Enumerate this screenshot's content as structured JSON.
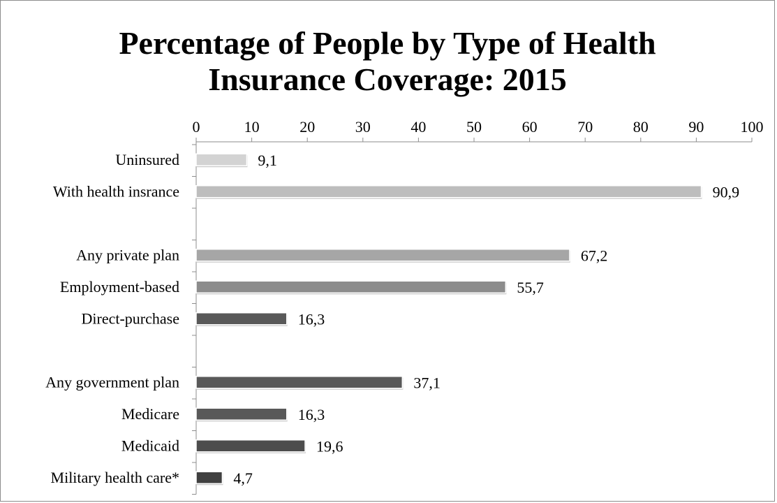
{
  "chart_data": {
    "type": "bar",
    "orientation": "horizontal",
    "title_lines": [
      "Percentage of People by Type of Health",
      "Insurance Coverage: 2015"
    ],
    "xlim": [
      0,
      100
    ],
    "x_ticks": [
      "0",
      "10",
      "20",
      "30",
      "40",
      "50",
      "60",
      "70",
      "80",
      "90",
      "100"
    ],
    "x_axis_position": "top",
    "grid": false,
    "categories": [
      "Uninsured",
      "With health insrance",
      "",
      "Any private plan",
      "Employment-based",
      "Direct-purchase",
      "",
      "Any government plan",
      "Medicare",
      "Medicaid",
      "Military health care*"
    ],
    "values": [
      9.1,
      90.9,
      null,
      67.2,
      55.7,
      16.3,
      null,
      37.1,
      16.3,
      19.6,
      4.7
    ],
    "value_labels": [
      "9,1",
      "90,9",
      "",
      "67,2",
      "55,7",
      "16,3",
      "",
      "37,1",
      "16,3",
      "19,6",
      "4,7"
    ],
    "bar_colors": [
      "#d3d3d3",
      "#bdbdbd",
      "",
      "#a6a6a6",
      "#8c8c8c",
      "#595959",
      "",
      "#595959",
      "#595959",
      "#4d4d4d",
      "#404040"
    ]
  }
}
